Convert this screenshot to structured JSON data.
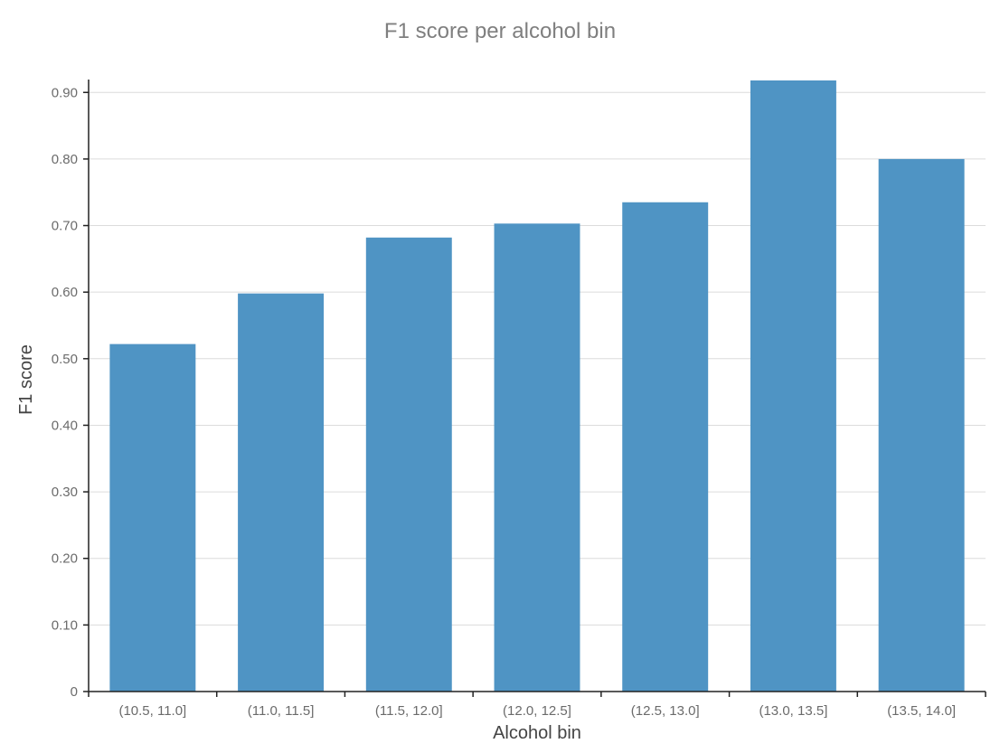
{
  "chart_data": {
    "type": "bar",
    "title": "F1 score per alcohol bin",
    "xlabel": "Alcohol bin",
    "ylabel": "F1 score",
    "categories": [
      "(10.5, 11.0]",
      "(11.0, 11.5]",
      "(11.5, 12.0]",
      "(12.0, 12.5]",
      "(12.5, 13.0]",
      "(13.0, 13.5]",
      "(13.5, 14.0]"
    ],
    "values": [
      0.522,
      0.598,
      0.682,
      0.703,
      0.735,
      0.918,
      0.8
    ],
    "ylim": [
      0,
      0.918
    ],
    "yticks": [
      0,
      0.1,
      0.2,
      0.3,
      0.4,
      0.5,
      0.6,
      0.7,
      0.8,
      0.9
    ],
    "ytick_labels": [
      "0",
      "0.10",
      "0.20",
      "0.30",
      "0.40",
      "0.50",
      "0.60",
      "0.70",
      "0.80",
      "0.90"
    ],
    "bar_color": "#4f94c4",
    "grid": true,
    "legend": "none"
  }
}
